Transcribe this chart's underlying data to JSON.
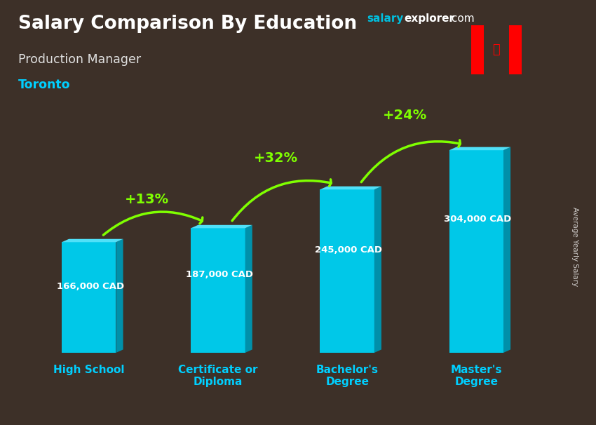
{
  "title": "Salary Comparison By Education",
  "subtitle": "Production Manager",
  "city": "Toronto",
  "categories": [
    "High School",
    "Certificate or\nDiploma",
    "Bachelor's\nDegree",
    "Master's\nDegree"
  ],
  "values": [
    166000,
    187000,
    245000,
    304000
  ],
  "value_labels": [
    "166,000 CAD",
    "187,000 CAD",
    "245,000 CAD",
    "304,000 CAD"
  ],
  "pct_changes": [
    "+13%",
    "+32%",
    "+24%"
  ],
  "bar_color_face": "#00C8E8",
  "bar_color_dark": "#0090AA",
  "bar_color_top": "#50E0F8",
  "bg_color": "#3d3028",
  "title_color": "#ffffff",
  "subtitle_color": "#e0e0e0",
  "city_color": "#00CFFF",
  "value_color": "#ffffff",
  "xticklabel_color": "#00CFFF",
  "pct_color": "#7FFF00",
  "arrow_color": "#7FFF00",
  "ylabel_text": "Average Yearly Salary",
  "ylim": [
    0,
    370000
  ],
  "figsize": [
    8.5,
    6.06
  ],
  "dpi": 100
}
